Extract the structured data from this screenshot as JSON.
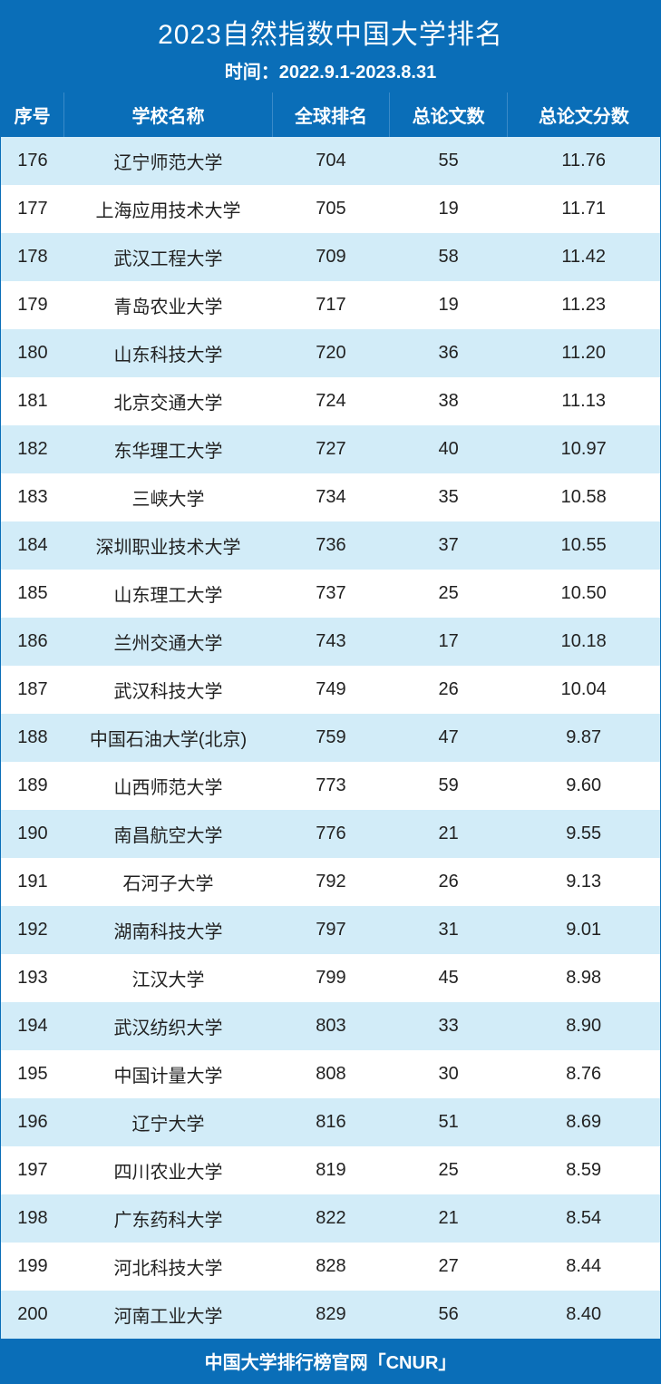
{
  "header": {
    "title": "2023自然指数中国大学排名",
    "subtitle": "时间：2022.9.1-2023.8.31"
  },
  "columns": {
    "seq": "序号",
    "name": "学校名称",
    "global": "全球排名",
    "papers": "总论文数",
    "score": "总论文分数"
  },
  "rows": [
    {
      "seq": "176",
      "name": "辽宁师范大学",
      "global": "704",
      "papers": "55",
      "score": "11.76"
    },
    {
      "seq": "177",
      "name": "上海应用技术大学",
      "global": "705",
      "papers": "19",
      "score": "11.71"
    },
    {
      "seq": "178",
      "name": "武汉工程大学",
      "global": "709",
      "papers": "58",
      "score": "11.42"
    },
    {
      "seq": "179",
      "name": "青岛农业大学",
      "global": "717",
      "papers": "19",
      "score": "11.23"
    },
    {
      "seq": "180",
      "name": "山东科技大学",
      "global": "720",
      "papers": "36",
      "score": "11.20"
    },
    {
      "seq": "181",
      "name": "北京交通大学",
      "global": "724",
      "papers": "38",
      "score": "11.13"
    },
    {
      "seq": "182",
      "name": "东华理工大学",
      "global": "727",
      "papers": "40",
      "score": "10.97"
    },
    {
      "seq": "183",
      "name": "三峡大学",
      "global": "734",
      "papers": "35",
      "score": "10.58"
    },
    {
      "seq": "184",
      "name": "深圳职业技术大学",
      "global": "736",
      "papers": "37",
      "score": "10.55"
    },
    {
      "seq": "185",
      "name": "山东理工大学",
      "global": "737",
      "papers": "25",
      "score": "10.50"
    },
    {
      "seq": "186",
      "name": "兰州交通大学",
      "global": "743",
      "papers": "17",
      "score": "10.18"
    },
    {
      "seq": "187",
      "name": "武汉科技大学",
      "global": "749",
      "papers": "26",
      "score": "10.04"
    },
    {
      "seq": "188",
      "name": "中国石油大学(北京)",
      "global": "759",
      "papers": "47",
      "score": "9.87"
    },
    {
      "seq": "189",
      "name": "山西师范大学",
      "global": "773",
      "papers": "59",
      "score": "9.60"
    },
    {
      "seq": "190",
      "name": "南昌航空大学",
      "global": "776",
      "papers": "21",
      "score": "9.55"
    },
    {
      "seq": "191",
      "name": "石河子大学",
      "global": "792",
      "papers": "26",
      "score": "9.13"
    },
    {
      "seq": "192",
      "name": "湖南科技大学",
      "global": "797",
      "papers": "31",
      "score": "9.01"
    },
    {
      "seq": "193",
      "name": "江汉大学",
      "global": "799",
      "papers": "45",
      "score": "8.98"
    },
    {
      "seq": "194",
      "name": "武汉纺织大学",
      "global": "803",
      "papers": "33",
      "score": "8.90"
    },
    {
      "seq": "195",
      "name": "中国计量大学",
      "global": "808",
      "papers": "30",
      "score": "8.76"
    },
    {
      "seq": "196",
      "name": "辽宁大学",
      "global": "816",
      "papers": "51",
      "score": "8.69"
    },
    {
      "seq": "197",
      "name": "四川农业大学",
      "global": "819",
      "papers": "25",
      "score": "8.59"
    },
    {
      "seq": "198",
      "name": "广东药科大学",
      "global": "822",
      "papers": "21",
      "score": "8.54"
    },
    {
      "seq": "199",
      "name": "河北科技大学",
      "global": "828",
      "papers": "27",
      "score": "8.44"
    },
    {
      "seq": "200",
      "name": "河南工业大学",
      "global": "829",
      "papers": "56",
      "score": "8.40"
    }
  ],
  "footer": "中国大学排行榜官网「CNUR」",
  "styling": {
    "type": "table",
    "header_bg": "#0a6eb8",
    "header_text_color": "#ffffff",
    "row_even_bg": "#d2ecf8",
    "row_odd_bg": "#ffffff",
    "cell_text_color": "#222222",
    "title_fontsize": 30,
    "subtitle_fontsize": 20,
    "header_fontsize": 20,
    "cell_fontsize": 20,
    "footer_fontsize": 20,
    "column_widths": {
      "seq": 70,
      "name": 230,
      "global": 130,
      "papers": 130,
      "score": 169
    },
    "total_width": 729,
    "total_height": 1388
  }
}
